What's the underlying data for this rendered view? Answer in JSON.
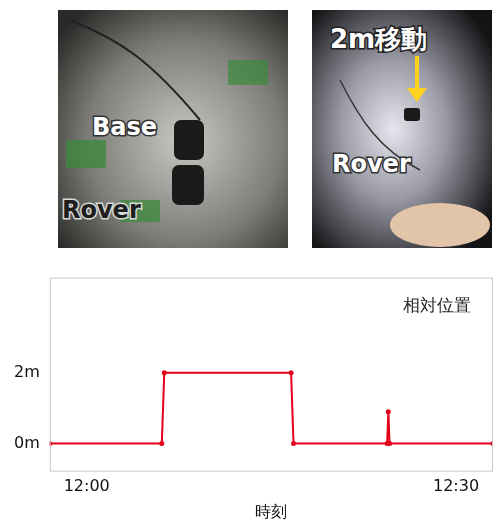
{
  "photos": [
    {
      "labels": [
        "Base",
        "Rover"
      ]
    },
    {
      "labels": [
        "2m移動",
        "Rover"
      ]
    }
  ],
  "chart_data": {
    "type": "line",
    "annotation": "相対位置",
    "x_label": "時刻",
    "x": [
      -3,
      6.1,
      6.3,
      16.6,
      16.8,
      24.4,
      24.5,
      24.6,
      33
    ],
    "values": [
      0,
      0,
      2,
      2,
      0,
      0,
      0.9,
      0,
      0
    ],
    "color": "#e3001b",
    "marker": "circle",
    "line_style": "solid",
    "xlim": [
      -3,
      33
    ],
    "xticks": [
      {
        "value": 0,
        "label": "12:00"
      },
      {
        "value": 30,
        "label": "12:30"
      }
    ],
    "ylim": [
      -0.8,
      4.7
    ],
    "yticks": [
      {
        "value": 0,
        "label": "0m"
      },
      {
        "value": 2,
        "label": "2m"
      }
    ],
    "grid": false
  }
}
